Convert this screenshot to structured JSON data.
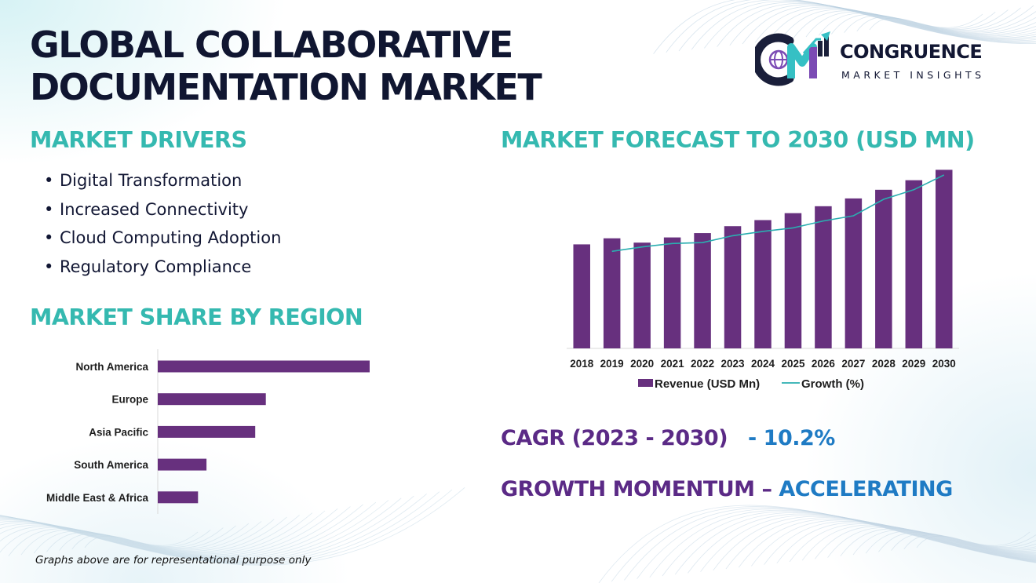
{
  "title_lines": [
    "GLOBAL COLLABORATIVE",
    "DOCUMENTATION MARKET"
  ],
  "logo": {
    "brand": "CONGRUENCE",
    "tagline": "MARKET INSIGHTS",
    "colors": {
      "navy": "#1a1f3a",
      "teal": "#36c0c4",
      "purple": "#7b4bb4"
    }
  },
  "drivers": {
    "heading": "MARKET DRIVERS",
    "bullet": "•",
    "items": [
      "Digital Transformation",
      "Increased Connectivity",
      "Cloud Computing Adoption",
      "Regulatory Compliance"
    ]
  },
  "region": {
    "heading": "MARKET SHARE BY REGION"
  },
  "forecast": {
    "heading": "MARKET FORECAST TO 2030 (USD MN)"
  },
  "cagr": {
    "label": "CAGR (2023 - 2030)",
    "value": "- 10.2%"
  },
  "momentum": {
    "label": "GROWTH MOMENTUM – ",
    "value": "ACCELERATING"
  },
  "footnote": "Graphs above are for representational purpose only",
  "colors": {
    "heading": "#35b9b0",
    "bar": "#67307e",
    "line": "#2aaeb0",
    "stat_label": "#5b2a86",
    "stat_value": "#1f7bc4"
  },
  "chart_data": [
    {
      "type": "bar",
      "orientation": "horizontal",
      "categories": [
        "North America",
        "Europe",
        "Asia Pacific",
        "South America",
        "Middle East & Africa"
      ],
      "values": [
        100,
        51,
        46,
        23,
        19
      ],
      "xlim": [
        0,
        100
      ],
      "grid": false,
      "legend": "none"
    },
    {
      "type": "bar",
      "categories": [
        "2018",
        "2019",
        "2020",
        "2021",
        "2022",
        "2023",
        "2024",
        "2025",
        "2026",
        "2027",
        "2028",
        "2029",
        "2030"
      ],
      "series": [
        {
          "name": "Revenue (USD Mn)",
          "type": "bar",
          "values": [
            120,
            127,
            122,
            128,
            133,
            141,
            148,
            156,
            164,
            173,
            183,
            194,
            206
          ]
        },
        {
          "name": "Growth (%)",
          "type": "line",
          "values": [
            null,
            112,
            117,
            121,
            122,
            130,
            135,
            139,
            147,
            153,
            172,
            183,
            200
          ]
        }
      ],
      "ylim": [
        0,
        210
      ],
      "grid": false,
      "legend": "bottom"
    }
  ]
}
